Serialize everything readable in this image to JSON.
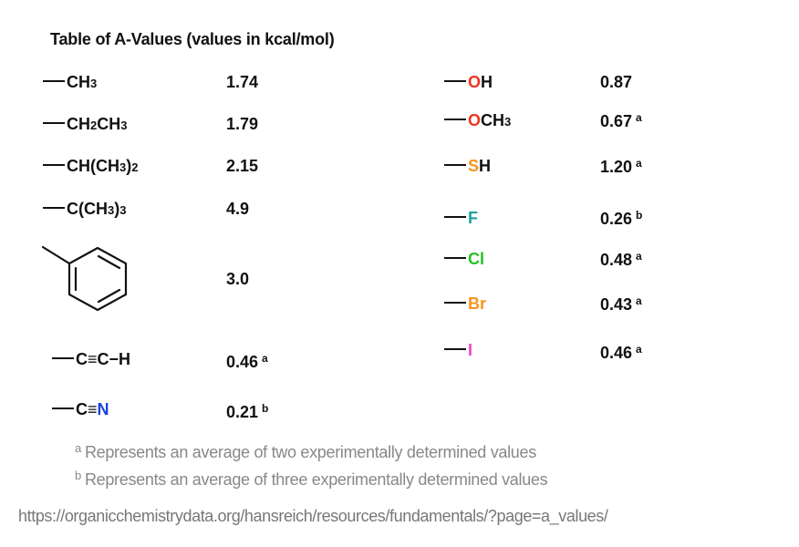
{
  "title": "Table of A-Values (values in kcal/mol)",
  "colors": {
    "oxygen": "#f0341f",
    "sulfur": "#f7931e",
    "fluorine": "#1aa3a3",
    "chlorine": "#22c122",
    "bromine": "#f7931e",
    "iodine": "#ee44cc",
    "nitrogen": "#1a3fe0"
  },
  "left": [
    {
      "group": [
        "CH",
        "3"
      ],
      "value": "1.74",
      "note": ""
    },
    {
      "group": [
        "CH",
        "2",
        "CH",
        "3"
      ],
      "value": "1.79",
      "note": ""
    },
    {
      "group": [
        "CH(CH",
        "3",
        ")",
        "2"
      ],
      "value": "2.15",
      "note": ""
    },
    {
      "group": [
        "C(CH",
        "3",
        ")",
        "3"
      ],
      "value": "4.9",
      "note": ""
    },
    {
      "group_name": "phenyl",
      "value": "3.0",
      "note": ""
    },
    {
      "group": [
        "C",
        "≡",
        "C",
        "−",
        "H"
      ],
      "value": "0.46",
      "note": "a"
    },
    {
      "group": [
        "C",
        "≡",
        "N"
      ],
      "value": "0.21",
      "note": "b"
    }
  ],
  "right": [
    {
      "atom": "O",
      "rest": "H",
      "value": "0.87",
      "note": ""
    },
    {
      "atom": "O",
      "rest": "CH",
      "sub": "3",
      "value": "0.67",
      "note": "a"
    },
    {
      "atom": "S",
      "rest": "H",
      "value": "1.20",
      "note": "a"
    },
    {
      "atom": "F",
      "value": "0.26",
      "note": "b"
    },
    {
      "atom": "Cl",
      "value": "0.48",
      "note": "a"
    },
    {
      "atom": "Br",
      "value": "0.43",
      "note": "a"
    },
    {
      "atom": "I",
      "value": "0.46",
      "note": "a"
    }
  ],
  "footnotes": [
    {
      "mark": "a",
      "text": "Represents an average of two experimentally determined values"
    },
    {
      "mark": "b",
      "text": "Represents an average of three experimentally determined values"
    }
  ],
  "source_url": "https://organicchemistrydata.org/hansreich/resources/fundamentals/?page=a_values/"
}
